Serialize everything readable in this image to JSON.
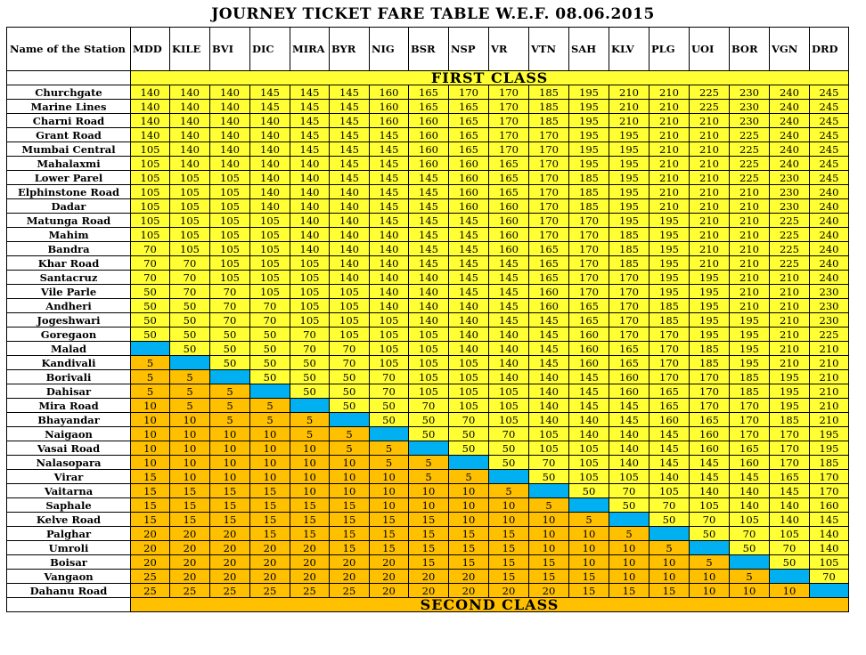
{
  "title": "JOURNEY TICKET FARE TABLE W.E.F. 08.06.2015",
  "station_header": "Name of the Station",
  "first_class_label": "FIRST CLASS",
  "second_class_label": "SECOND  CLASS",
  "columns": [
    "MDD",
    "KILE",
    "BVI",
    "DIC",
    "MIRA",
    "BYR",
    "NIG",
    "BSR",
    "NSP",
    "VR",
    "VTN",
    "SAH",
    "KLV",
    "PLG",
    "UOI",
    "BOR",
    "VGN",
    "DRD"
  ],
  "legend_colors": {
    "first_class": "#ffff33",
    "second_class": "#ffc000",
    "same_station": "#00b0f0"
  },
  "rows": [
    {
      "station": "Churchgate",
      "fares": [
        "140",
        "140",
        "140",
        "145",
        "145",
        "145",
        "160",
        "165",
        "170",
        "170",
        "185",
        "195",
        "210",
        "210",
        "225",
        "230",
        "240",
        "245"
      ]
    },
    {
      "station": "Marine Lines",
      "fares": [
        "140",
        "140",
        "140",
        "145",
        "145",
        "145",
        "160",
        "165",
        "165",
        "170",
        "185",
        "195",
        "210",
        "210",
        "225",
        "230",
        "240",
        "245"
      ]
    },
    {
      "station": "Charni Road",
      "fares": [
        "140",
        "140",
        "140",
        "140",
        "145",
        "145",
        "160",
        "160",
        "165",
        "170",
        "185",
        "195",
        "210",
        "210",
        "210",
        "230",
        "240",
        "245"
      ]
    },
    {
      "station": "Grant Road",
      "fares": [
        "140",
        "140",
        "140",
        "140",
        "145",
        "145",
        "145",
        "160",
        "165",
        "170",
        "170",
        "195",
        "195",
        "210",
        "210",
        "225",
        "240",
        "245"
      ]
    },
    {
      "station": "Mumbai Central",
      "fares": [
        "105",
        "140",
        "140",
        "140",
        "145",
        "145",
        "145",
        "160",
        "165",
        "170",
        "170",
        "195",
        "195",
        "210",
        "210",
        "225",
        "240",
        "245"
      ]
    },
    {
      "station": "Mahalaxmi",
      "fares": [
        "105",
        "140",
        "140",
        "140",
        "140",
        "145",
        "145",
        "160",
        "160",
        "165",
        "170",
        "195",
        "195",
        "210",
        "210",
        "225",
        "240",
        "245"
      ]
    },
    {
      "station": "Lower Parel",
      "fares": [
        "105",
        "105",
        "105",
        "140",
        "140",
        "145",
        "145",
        "145",
        "160",
        "165",
        "170",
        "185",
        "195",
        "210",
        "210",
        "225",
        "230",
        "245"
      ]
    },
    {
      "station": "Elphinstone Road",
      "fares": [
        "105",
        "105",
        "105",
        "140",
        "140",
        "140",
        "145",
        "145",
        "160",
        "165",
        "170",
        "185",
        "195",
        "210",
        "210",
        "210",
        "230",
        "240"
      ]
    },
    {
      "station": "Dadar",
      "fares": [
        "105",
        "105",
        "105",
        "140",
        "140",
        "140",
        "145",
        "145",
        "160",
        "160",
        "170",
        "185",
        "195",
        "210",
        "210",
        "210",
        "230",
        "240"
      ]
    },
    {
      "station": "Matunga Road",
      "fares": [
        "105",
        "105",
        "105",
        "105",
        "140",
        "140",
        "145",
        "145",
        "145",
        "160",
        "170",
        "170",
        "195",
        "195",
        "210",
        "210",
        "225",
        "240"
      ]
    },
    {
      "station": "Mahim",
      "fares": [
        "105",
        "105",
        "105",
        "105",
        "140",
        "140",
        "140",
        "145",
        "145",
        "160",
        "170",
        "170",
        "185",
        "195",
        "210",
        "210",
        "225",
        "240"
      ]
    },
    {
      "station": "Bandra",
      "fares": [
        "70",
        "105",
        "105",
        "105",
        "140",
        "140",
        "140",
        "145",
        "145",
        "160",
        "165",
        "170",
        "185",
        "195",
        "210",
        "210",
        "225",
        "240"
      ]
    },
    {
      "station": "Khar Road",
      "fares": [
        "70",
        "70",
        "105",
        "105",
        "105",
        "140",
        "140",
        "145",
        "145",
        "145",
        "165",
        "170",
        "185",
        "195",
        "210",
        "210",
        "225",
        "240"
      ]
    },
    {
      "station": "Santacruz",
      "fares": [
        "70",
        "70",
        "105",
        "105",
        "105",
        "140",
        "140",
        "140",
        "145",
        "145",
        "165",
        "170",
        "170",
        "195",
        "195",
        "210",
        "210",
        "240"
      ]
    },
    {
      "station": "Vile Parle",
      "fares": [
        "50",
        "70",
        "70",
        "105",
        "105",
        "105",
        "140",
        "140",
        "145",
        "145",
        "160",
        "170",
        "170",
        "195",
        "195",
        "210",
        "210",
        "230"
      ]
    },
    {
      "station": "Andheri",
      "fares": [
        "50",
        "50",
        "70",
        "70",
        "105",
        "105",
        "140",
        "140",
        "140",
        "145",
        "160",
        "165",
        "170",
        "185",
        "195",
        "210",
        "210",
        "230"
      ]
    },
    {
      "station": "Jogeshwari",
      "fares": [
        "50",
        "50",
        "70",
        "70",
        "105",
        "105",
        "105",
        "140",
        "140",
        "145",
        "145",
        "165",
        "170",
        "185",
        "195",
        "195",
        "210",
        "230"
      ]
    },
    {
      "station": "Goregaon",
      "fares": [
        "50",
        "50",
        "50",
        "50",
        "70",
        "105",
        "105",
        "105",
        "140",
        "140",
        "145",
        "160",
        "170",
        "170",
        "195",
        "195",
        "210",
        "225"
      ]
    },
    {
      "station": "Malad",
      "fares": [
        "",
        "50",
        "50",
        "50",
        "70",
        "70",
        "105",
        "105",
        "140",
        "140",
        "145",
        "160",
        "165",
        "170",
        "185",
        "195",
        "210",
        "210"
      ]
    },
    {
      "station": "Kandivali",
      "fares": [
        "5",
        "",
        "50",
        "50",
        "50",
        "70",
        "105",
        "105",
        "105",
        "140",
        "145",
        "160",
        "165",
        "170",
        "185",
        "195",
        "210",
        "210"
      ]
    },
    {
      "station": "Borivali",
      "fares": [
        "5",
        "5",
        "",
        "50",
        "50",
        "50",
        "70",
        "105",
        "105",
        "140",
        "140",
        "145",
        "160",
        "170",
        "170",
        "185",
        "195",
        "210"
      ]
    },
    {
      "station": "Dahisar",
      "fares": [
        "5",
        "5",
        "5",
        "",
        "50",
        "50",
        "70",
        "105",
        "105",
        "105",
        "140",
        "145",
        "160",
        "165",
        "170",
        "185",
        "195",
        "210"
      ]
    },
    {
      "station": "Mira Road",
      "fares": [
        "10",
        "5",
        "5",
        "5",
        "",
        "50",
        "50",
        "70",
        "105",
        "105",
        "140",
        "145",
        "145",
        "165",
        "170",
        "170",
        "195",
        "210"
      ]
    },
    {
      "station": "Bhayandar",
      "fares": [
        "10",
        "10",
        "5",
        "5",
        "5",
        "",
        "50",
        "50",
        "70",
        "105",
        "140",
        "140",
        "145",
        "160",
        "165",
        "170",
        "185",
        "210"
      ]
    },
    {
      "station": "Naigaon",
      "fares": [
        "10",
        "10",
        "10",
        "10",
        "5",
        "5",
        "",
        "50",
        "50",
        "70",
        "105",
        "140",
        "140",
        "145",
        "160",
        "170",
        "170",
        "195"
      ]
    },
    {
      "station": "Vasai Road",
      "fares": [
        "10",
        "10",
        "10",
        "10",
        "10",
        "5",
        "5",
        "",
        "50",
        "50",
        "105",
        "105",
        "140",
        "145",
        "160",
        "165",
        "170",
        "195"
      ]
    },
    {
      "station": "Nalasopara",
      "fares": [
        "10",
        "10",
        "10",
        "10",
        "10",
        "10",
        "5",
        "5",
        "",
        "50",
        "70",
        "105",
        "140",
        "145",
        "145",
        "160",
        "170",
        "185"
      ]
    },
    {
      "station": "Virar",
      "fares": [
        "15",
        "10",
        "10",
        "10",
        "10",
        "10",
        "10",
        "5",
        "5",
        "",
        "50",
        "105",
        "105",
        "140",
        "145",
        "145",
        "165",
        "170"
      ]
    },
    {
      "station": "Vaitarna",
      "fares": [
        "15",
        "15",
        "15",
        "15",
        "10",
        "10",
        "10",
        "10",
        "10",
        "5",
        "",
        "50",
        "70",
        "105",
        "140",
        "140",
        "145",
        "170"
      ]
    },
    {
      "station": "Saphale",
      "fares": [
        "15",
        "15",
        "15",
        "15",
        "15",
        "15",
        "10",
        "10",
        "10",
        "10",
        "5",
        "",
        "50",
        "70",
        "105",
        "140",
        "140",
        "160"
      ]
    },
    {
      "station": "Kelve Road",
      "fares": [
        "15",
        "15",
        "15",
        "15",
        "15",
        "15",
        "15",
        "15",
        "10",
        "10",
        "10",
        "5",
        "",
        "50",
        "70",
        "105",
        "140",
        "145"
      ]
    },
    {
      "station": "Palghar",
      "fares": [
        "20",
        "20",
        "20",
        "15",
        "15",
        "15",
        "15",
        "15",
        "15",
        "15",
        "10",
        "10",
        "5",
        "",
        "50",
        "70",
        "105",
        "140"
      ]
    },
    {
      "station": "Umroli",
      "fares": [
        "20",
        "20",
        "20",
        "20",
        "20",
        "15",
        "15",
        "15",
        "15",
        "15",
        "10",
        "10",
        "10",
        "5",
        "",
        "50",
        "70",
        "140"
      ]
    },
    {
      "station": "Boisar",
      "fares": [
        "20",
        "20",
        "20",
        "20",
        "20",
        "20",
        "20",
        "15",
        "15",
        "15",
        "15",
        "10",
        "10",
        "10",
        "5",
        "",
        "50",
        "105"
      ]
    },
    {
      "station": "Vangaon",
      "fares": [
        "25",
        "20",
        "20",
        "20",
        "20",
        "20",
        "20",
        "20",
        "20",
        "15",
        "15",
        "15",
        "10",
        "10",
        "10",
        "5",
        "",
        "70"
      ]
    },
    {
      "station": "Dahanu Road",
      "fares": [
        "25",
        "25",
        "25",
        "25",
        "25",
        "25",
        "20",
        "20",
        "20",
        "20",
        "20",
        "15",
        "15",
        "15",
        "10",
        "10",
        "10",
        ""
      ]
    }
  ]
}
